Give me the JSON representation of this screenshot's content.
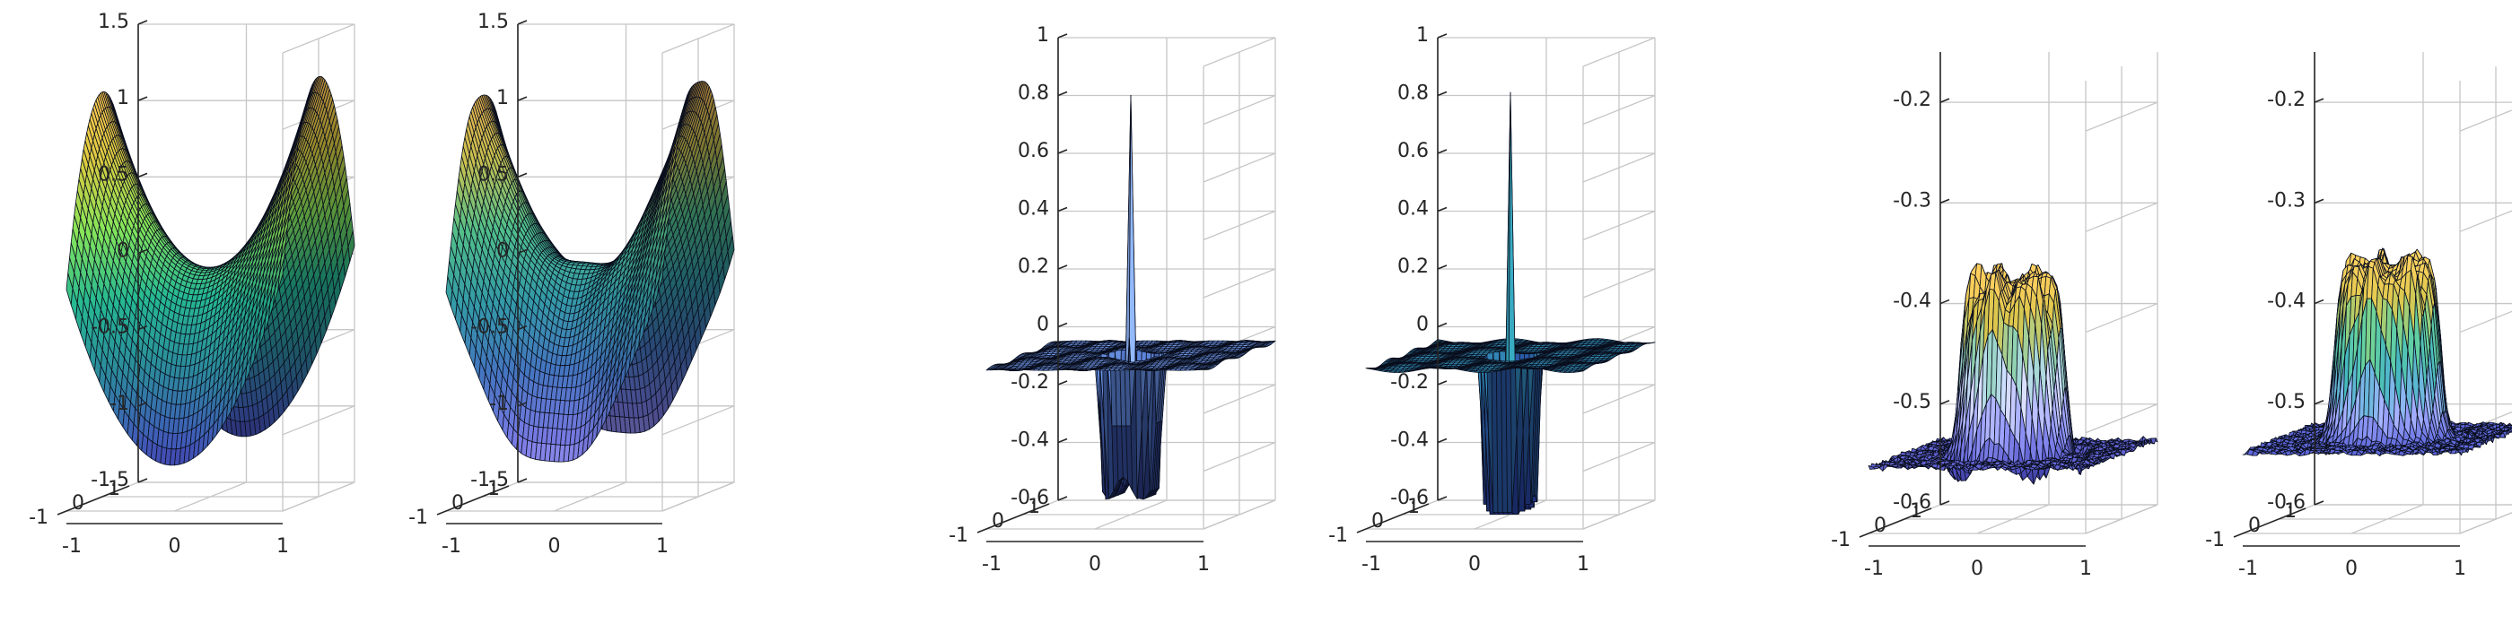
{
  "chart_data": [
    {
      "type": "surface",
      "title": "",
      "function": "saddle",
      "xlim": [
        -1,
        1
      ],
      "ylim": [
        -1,
        1
      ],
      "zlim": [
        -1.5,
        1.5
      ],
      "z_ticks": [
        "1.5",
        "1",
        "0.5",
        "0",
        "-0.5",
        "-1",
        "-1.5"
      ],
      "x_ticks": [
        "-1",
        "0",
        "1"
      ],
      "y_ticks": [
        "1",
        "0",
        "-1"
      ],
      "colormap": [
        "#3e1a86",
        "#3b52a8",
        "#287d8e",
        "#22a884",
        "#7ad151",
        "#c8b83a",
        "#f0b84a"
      ],
      "color_range": [
        -1.5,
        1.2
      ],
      "light": 0.85
    },
    {
      "type": "surface",
      "title": "",
      "function": "saddle-noisy",
      "xlim": [
        -1,
        1
      ],
      "ylim": [
        -1,
        1
      ],
      "zlim": [
        -1.5,
        1.5
      ],
      "z_ticks": [
        "1.5",
        "1",
        "0.5",
        "0",
        "-0.5",
        "-1",
        "-1.5"
      ],
      "x_ticks": [
        "-1",
        "0",
        "1"
      ],
      "y_ticks": [
        "1",
        "0",
        "-1"
      ],
      "colormap": [
        "#b6b3f0",
        "#6f6fd0",
        "#3e6aae",
        "#2f8d97",
        "#4aae7d",
        "#b8b048",
        "#e2a84a"
      ],
      "color_range": [
        -1.5,
        1.2
      ],
      "light": 0.8
    },
    {
      "type": "surface",
      "title": "",
      "function": "spike-well",
      "xlim": [
        -1,
        1
      ],
      "ylim": [
        -1,
        1
      ],
      "zlim": [
        -0.6,
        1
      ],
      "z_ticks": [
        "1",
        "0.8",
        "0.6",
        "0.4",
        "0.2",
        "0",
        "-0.2",
        "-0.4",
        "-0.6"
      ],
      "x_ticks": [
        "-1",
        "0",
        "1"
      ],
      "y_ticks": [
        "1",
        "0",
        "-1"
      ],
      "colormap": [
        "#1a1b50",
        "#30488e",
        "#5f86d6",
        "#8aa9ec",
        "#3fa3a2",
        "#c9b845",
        "#e8c56a"
      ],
      "color_range": [
        -0.6,
        0.85
      ],
      "light": 0.85
    },
    {
      "type": "surface",
      "title": "",
      "function": "spike-well-deep",
      "xlim": [
        -1,
        1
      ],
      "ylim": [
        -1,
        1
      ],
      "zlim": [
        -0.6,
        1
      ],
      "z_ticks": [
        "1",
        "0.8",
        "0.6",
        "0.4",
        "0.2",
        "0",
        "-0.2",
        "-0.4",
        "-0.6"
      ],
      "x_ticks": [
        "-1",
        "0",
        "1"
      ],
      "y_ticks": [
        "1",
        "0",
        "-1"
      ],
      "colormap": [
        "#1c2a78",
        "#274d9a",
        "#2f7fae",
        "#34a6b3",
        "#4fb7a4",
        "#c2b645",
        "#e8c56a"
      ],
      "color_range": [
        -0.6,
        0.85
      ],
      "light": 0.85
    },
    {
      "type": "surface",
      "title": "",
      "function": "plateau-dip",
      "xlim": [
        -1,
        1
      ],
      "ylim": [
        -1,
        1
      ],
      "zlim": [
        -0.6,
        -0.15
      ],
      "z_ticks": [
        "-0.2",
        "-0.3",
        "-0.4",
        "-0.5",
        "-0.6"
      ],
      "x_ticks": [
        "-1",
        "0",
        "1"
      ],
      "y_ticks": [
        "1",
        "0",
        "-1"
      ],
      "colormap": [
        "#26206a",
        "#4a4ab4",
        "#8a8ee6",
        "#c7cdf7",
        "#7fc0a6",
        "#c6b444",
        "#e8bc55"
      ],
      "color_range": [
        -0.58,
        -0.36
      ],
      "light": 0.85
    },
    {
      "type": "surface",
      "title": "",
      "function": "plateau",
      "xlim": [
        -1,
        1
      ],
      "ylim": [
        -1,
        1
      ],
      "zlim": [
        -0.6,
        -0.15
      ],
      "z_ticks": [
        "-0.2",
        "-0.3",
        "-0.4",
        "-0.5",
        "-0.6"
      ],
      "x_ticks": [
        "-1",
        "0",
        "1"
      ],
      "y_ticks": [
        "1",
        "0",
        "-1"
      ],
      "colormap": [
        "#2a2570",
        "#4f57c2",
        "#9aa4ee",
        "#3ea8b0",
        "#5ec08e",
        "#c9b646",
        "#e8bf58"
      ],
      "color_range": [
        -0.56,
        -0.34
      ],
      "light": 0.85
    }
  ]
}
